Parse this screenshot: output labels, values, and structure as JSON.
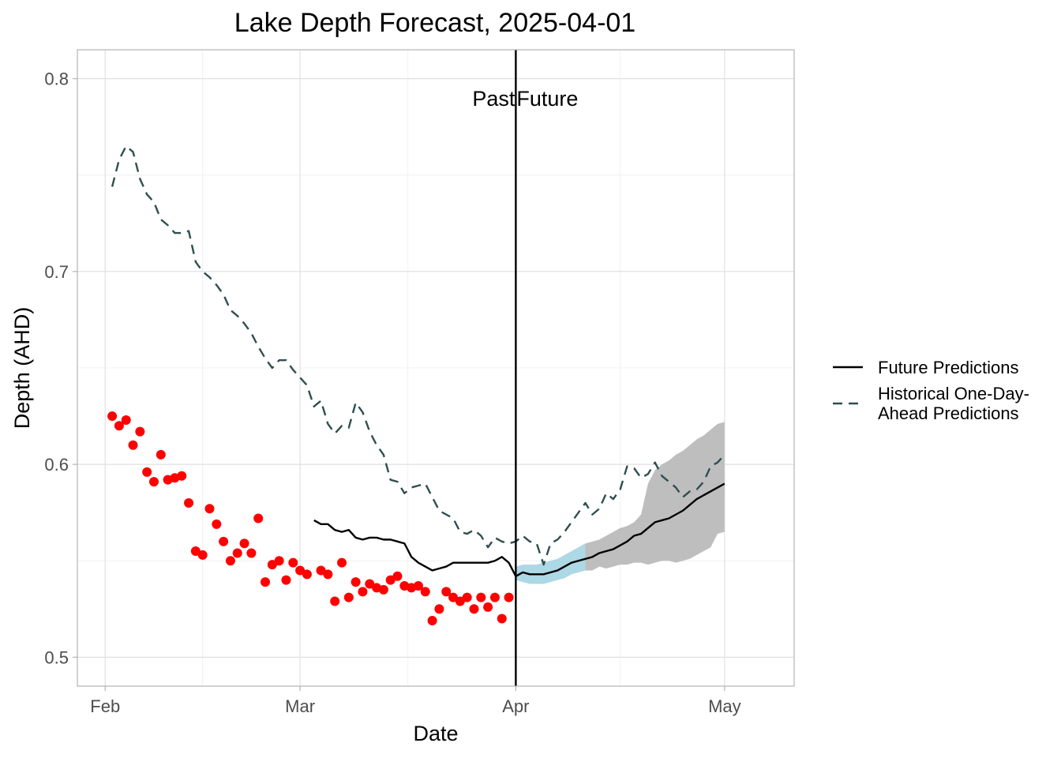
{
  "chart_data": {
    "type": "line",
    "title": "Lake Depth Forecast, 2025-04-01",
    "x_label": "Date",
    "y_label": "Depth (AHD)",
    "xlim": [
      "2025-01-28",
      "2025-05-11"
    ],
    "ylim": [
      0.485,
      0.815
    ],
    "xticks": [
      {
        "value": "2025-02-01",
        "label": "Feb"
      },
      {
        "value": "2025-03-01",
        "label": "Mar"
      },
      {
        "value": "2025-04-01",
        "label": "Apr"
      },
      {
        "value": "2025-05-01",
        "label": "May"
      }
    ],
    "yticks": [
      0.5,
      0.6,
      0.7,
      0.8
    ],
    "grid": true,
    "legend": "right",
    "vline": {
      "x": "2025-04-01",
      "color": "#000000"
    },
    "annotations": [
      "Past",
      "Future"
    ],
    "bands": [
      {
        "color": "#add8e6",
        "x": [
          "2025-04-01",
          "2025-04-02",
          "2025-04-03",
          "2025-04-04",
          "2025-04-05",
          "2025-04-06",
          "2025-04-07",
          "2025-04-08",
          "2025-04-09",
          "2025-04-10",
          "2025-04-11"
        ],
        "lower": [
          0.54,
          0.539,
          0.538,
          0.538,
          0.538,
          0.539,
          0.54,
          0.541,
          0.543,
          0.544,
          0.545
        ],
        "upper": [
          0.547,
          0.548,
          0.548,
          0.548,
          0.549,
          0.55,
          0.551,
          0.553,
          0.555,
          0.557,
          0.559
        ]
      },
      {
        "color": "#bebebe",
        "x": [
          "2025-04-11",
          "2025-04-12",
          "2025-04-13",
          "2025-04-14",
          "2025-04-15",
          "2025-04-16",
          "2025-04-17",
          "2025-04-18",
          "2025-04-19",
          "2025-04-20",
          "2025-04-21",
          "2025-04-22",
          "2025-04-23",
          "2025-04-24",
          "2025-04-25",
          "2025-04-26",
          "2025-04-27",
          "2025-04-28",
          "2025-04-29",
          "2025-04-30",
          "2025-05-01"
        ],
        "lower": [
          0.545,
          0.545,
          0.547,
          0.546,
          0.547,
          0.548,
          0.548,
          0.549,
          0.549,
          0.548,
          0.549,
          0.55,
          0.55,
          0.549,
          0.55,
          0.551,
          0.553,
          0.555,
          0.557,
          0.564,
          0.565
        ],
        "upper": [
          0.559,
          0.56,
          0.561,
          0.563,
          0.565,
          0.567,
          0.568,
          0.57,
          0.574,
          0.59,
          0.597,
          0.6,
          0.602,
          0.605,
          0.607,
          0.61,
          0.613,
          0.615,
          0.618,
          0.621,
          0.622
        ]
      }
    ],
    "series": [
      {
        "name": "Future Predictions",
        "color": "#000000",
        "dash": false,
        "x": [
          "2025-03-03",
          "2025-03-04",
          "2025-03-05",
          "2025-03-06",
          "2025-03-07",
          "2025-03-08",
          "2025-03-09",
          "2025-03-10",
          "2025-03-11",
          "2025-03-12",
          "2025-03-13",
          "2025-03-14",
          "2025-03-15",
          "2025-03-16",
          "2025-03-17",
          "2025-03-18",
          "2025-03-19",
          "2025-03-20",
          "2025-03-21",
          "2025-03-22",
          "2025-03-23",
          "2025-03-24",
          "2025-03-25",
          "2025-03-26",
          "2025-03-27",
          "2025-03-28",
          "2025-03-29",
          "2025-03-30",
          "2025-03-31",
          "2025-04-01",
          "2025-04-02",
          "2025-04-03",
          "2025-04-04",
          "2025-04-05",
          "2025-04-06",
          "2025-04-07",
          "2025-04-08",
          "2025-04-09",
          "2025-04-10",
          "2025-04-11",
          "2025-04-12",
          "2025-04-13",
          "2025-04-14",
          "2025-04-15",
          "2025-04-16",
          "2025-04-17",
          "2025-04-18",
          "2025-04-19",
          "2025-04-20",
          "2025-04-21",
          "2025-04-22",
          "2025-04-23",
          "2025-04-24",
          "2025-04-25",
          "2025-04-26",
          "2025-04-27",
          "2025-04-28",
          "2025-04-29",
          "2025-04-30",
          "2025-05-01"
        ],
        "values": [
          0.571,
          0.569,
          0.569,
          0.566,
          0.565,
          0.566,
          0.562,
          0.561,
          0.562,
          0.562,
          0.561,
          0.561,
          0.56,
          0.559,
          0.552,
          0.549,
          0.547,
          0.545,
          0.546,
          0.547,
          0.549,
          0.549,
          0.549,
          0.549,
          0.549,
          0.549,
          0.55,
          0.552,
          0.549,
          0.542,
          0.544,
          0.543,
          0.543,
          0.543,
          0.544,
          0.545,
          0.547,
          0.549,
          0.55,
          0.551,
          0.552,
          0.554,
          0.555,
          0.556,
          0.558,
          0.56,
          0.563,
          0.564,
          0.567,
          0.57,
          0.571,
          0.572,
          0.574,
          0.576,
          0.579,
          0.582,
          0.584,
          0.586,
          0.588,
          0.59
        ]
      },
      {
        "name": "Historical One-Day-\nAhead Predictions",
        "color": "#2f4f4f",
        "dash": true,
        "x": [
          "2025-02-02",
          "2025-02-03",
          "2025-02-04",
          "2025-02-05",
          "2025-02-06",
          "2025-02-07",
          "2025-02-08",
          "2025-02-09",
          "2025-02-10",
          "2025-02-11",
          "2025-02-12",
          "2025-02-13",
          "2025-02-14",
          "2025-02-15",
          "2025-02-16",
          "2025-02-17",
          "2025-02-18",
          "2025-02-19",
          "2025-02-20",
          "2025-02-21",
          "2025-02-22",
          "2025-02-23",
          "2025-02-24",
          "2025-02-25",
          "2025-02-26",
          "2025-02-27",
          "2025-02-28",
          "2025-03-01",
          "2025-03-02",
          "2025-03-03",
          "2025-03-04",
          "2025-03-05",
          "2025-03-06",
          "2025-03-07",
          "2025-03-08",
          "2025-03-09",
          "2025-03-10",
          "2025-03-11",
          "2025-03-12",
          "2025-03-13",
          "2025-03-14",
          "2025-03-15",
          "2025-03-16",
          "2025-03-17",
          "2025-03-18",
          "2025-03-19",
          "2025-03-20",
          "2025-03-21",
          "2025-03-22",
          "2025-03-23",
          "2025-03-24",
          "2025-03-25",
          "2025-03-26",
          "2025-03-27",
          "2025-03-28",
          "2025-03-29",
          "2025-03-30",
          "2025-03-31",
          "2025-04-01",
          "2025-04-02",
          "2025-04-03",
          "2025-04-04",
          "2025-04-05",
          "2025-04-06",
          "2025-04-07",
          "2025-04-08",
          "2025-04-09",
          "2025-04-10",
          "2025-04-11",
          "2025-04-12",
          "2025-04-13",
          "2025-04-14",
          "2025-04-15",
          "2025-04-16",
          "2025-04-17",
          "2025-04-18",
          "2025-04-19",
          "2025-04-20",
          "2025-04-21",
          "2025-04-22",
          "2025-04-23",
          "2025-04-24",
          "2025-04-25",
          "2025-04-26",
          "2025-04-27",
          "2025-04-28",
          "2025-04-29",
          "2025-04-30",
          "2025-05-01"
        ],
        "values": [
          0.744,
          0.758,
          0.765,
          0.762,
          0.748,
          0.74,
          0.736,
          0.727,
          0.724,
          0.72,
          0.72,
          0.721,
          0.705,
          0.7,
          0.697,
          0.693,
          0.688,
          0.68,
          0.677,
          0.673,
          0.668,
          0.661,
          0.655,
          0.65,
          0.654,
          0.654,
          0.649,
          0.645,
          0.641,
          0.63,
          0.633,
          0.621,
          0.616,
          0.62,
          0.619,
          0.632,
          0.627,
          0.617,
          0.61,
          0.605,
          0.592,
          0.591,
          0.585,
          0.588,
          0.589,
          0.59,
          0.583,
          0.576,
          0.574,
          0.572,
          0.565,
          0.564,
          0.566,
          0.563,
          0.557,
          0.562,
          0.56,
          0.559,
          0.56,
          0.563,
          0.56,
          0.559,
          0.548,
          0.559,
          0.561,
          0.565,
          0.57,
          0.575,
          0.58,
          0.574,
          0.577,
          0.585,
          0.582,
          0.587,
          0.599,
          0.598,
          0.593,
          0.595,
          0.601,
          0.594,
          0.591,
          0.588,
          0.583,
          0.586,
          0.587,
          0.591,
          0.599,
          0.601,
          0.605
        ]
      }
    ],
    "points": {
      "color": "#ff0000",
      "x": [
        "2025-02-02",
        "2025-02-03",
        "2025-02-04",
        "2025-02-05",
        "2025-02-06",
        "2025-02-07",
        "2025-02-08",
        "2025-02-09",
        "2025-02-10",
        "2025-02-11",
        "2025-02-12",
        "2025-02-13",
        "2025-02-14",
        "2025-02-15",
        "2025-02-16",
        "2025-02-17",
        "2025-02-18",
        "2025-02-19",
        "2025-02-20",
        "2025-02-21",
        "2025-02-22",
        "2025-02-23",
        "2025-02-24",
        "2025-02-25",
        "2025-02-26",
        "2025-02-27",
        "2025-02-28",
        "2025-03-01",
        "2025-03-02",
        "2025-03-04",
        "2025-03-05",
        "2025-03-06",
        "2025-03-07",
        "2025-03-08",
        "2025-03-09",
        "2025-03-10",
        "2025-03-11",
        "2025-03-12",
        "2025-03-13",
        "2025-03-14",
        "2025-03-15",
        "2025-03-16",
        "2025-03-17",
        "2025-03-18",
        "2025-03-19",
        "2025-03-20",
        "2025-03-21",
        "2025-03-22",
        "2025-03-23",
        "2025-03-24",
        "2025-03-25",
        "2025-03-26",
        "2025-03-27",
        "2025-03-28",
        "2025-03-29",
        "2025-03-30",
        "2025-03-31"
      ],
      "values": [
        0.625,
        0.62,
        0.623,
        0.61,
        0.617,
        0.596,
        0.591,
        0.605,
        0.592,
        0.593,
        0.594,
        0.58,
        0.555,
        0.553,
        0.577,
        0.569,
        0.56,
        0.55,
        0.554,
        0.559,
        0.554,
        0.572,
        0.539,
        0.548,
        0.55,
        0.54,
        0.549,
        0.545,
        0.543,
        0.545,
        0.543,
        0.529,
        0.549,
        0.531,
        0.539,
        0.534,
        0.538,
        0.536,
        0.535,
        0.54,
        0.542,
        0.537,
        0.536,
        0.537,
        0.534,
        0.519,
        0.525,
        0.534,
        0.531,
        0.529,
        0.531,
        0.525,
        0.531,
        0.526,
        0.531,
        0.52,
        0.531
      ]
    }
  }
}
